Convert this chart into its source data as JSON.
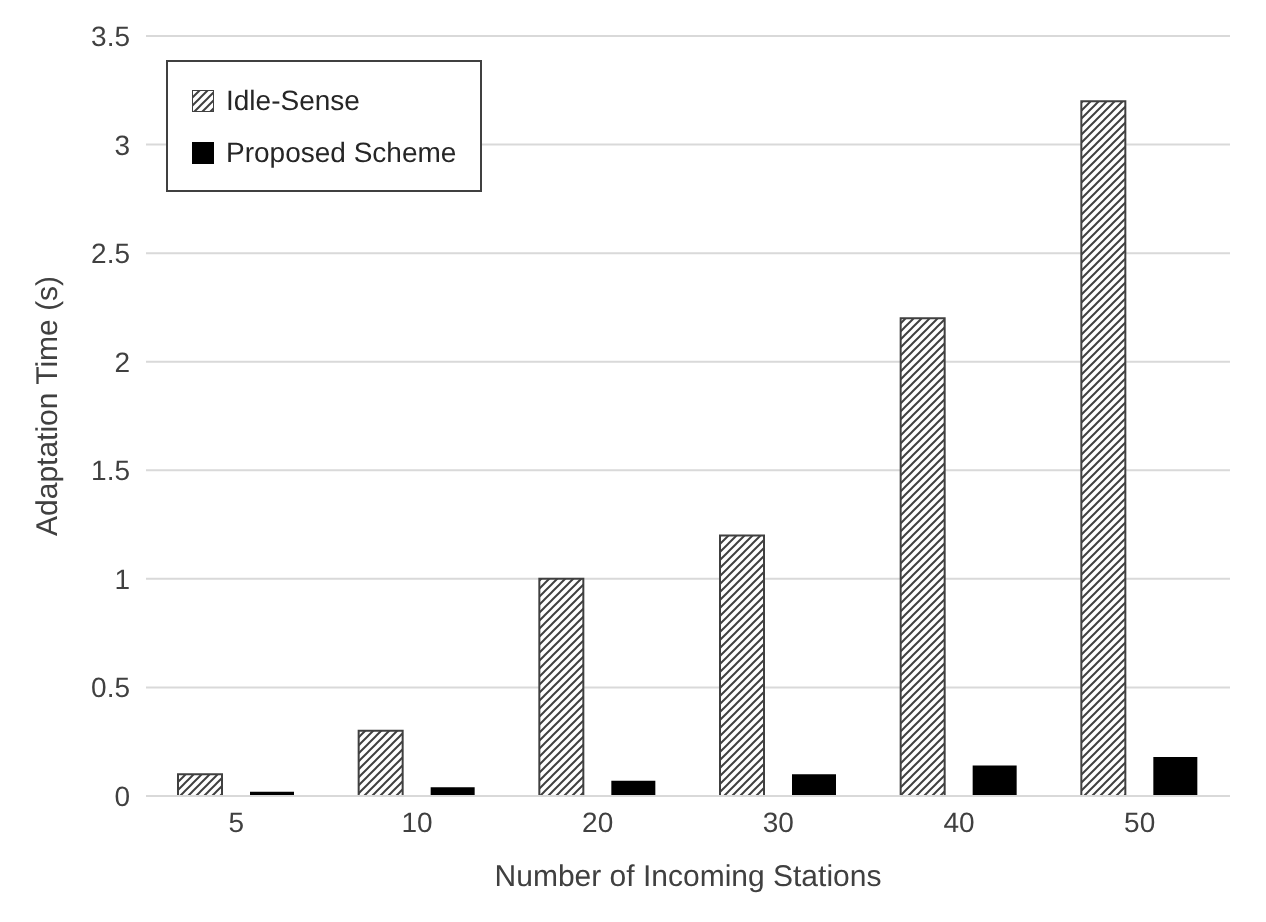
{
  "chart_data": {
    "type": "bar",
    "xlabel": "Number of Incoming Stations",
    "ylabel": "Adaptation Time (s)",
    "categories": [
      "5",
      "10",
      "20",
      "30",
      "40",
      "50"
    ],
    "series": [
      {
        "name": "Idle-Sense",
        "color": "#404040",
        "values": [
          0.1,
          0.3,
          1.0,
          1.2,
          2.2,
          3.2
        ]
      },
      {
        "name": "Proposed Scheme",
        "color": "#000000",
        "values": [
          0.02,
          0.04,
          0.07,
          0.1,
          0.14,
          0.18
        ]
      }
    ],
    "ylim": [
      0,
      3.5
    ],
    "yticks": [
      0,
      0.5,
      1,
      1.5,
      2,
      2.5,
      3,
      3.5
    ],
    "grid": "y",
    "legend": "top left"
  }
}
